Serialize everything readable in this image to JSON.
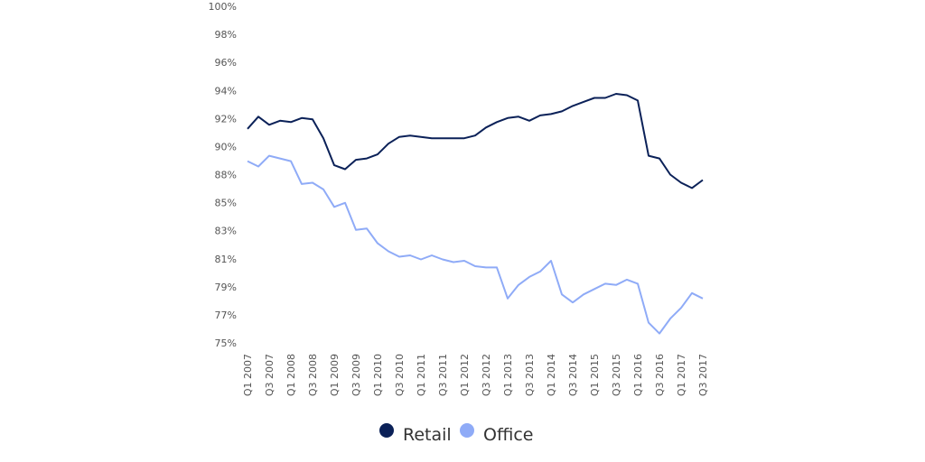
{
  "chart_data": {
    "type": "line",
    "title": "",
    "xlabel": "",
    "ylabel": "",
    "ylim": [
      75,
      100
    ],
    "y_ticks": [
      "75%",
      "77%",
      "79%",
      "81%",
      "83%",
      "85%",
      "88%",
      "90%",
      "92%",
      "94%",
      "96%",
      "98%",
      "100%"
    ],
    "grid": false,
    "legend_placement": "bottom",
    "x": [
      "Q1 2007",
      "Q2 2007",
      "Q3 2007",
      "Q4 2007",
      "Q1 2008",
      "Q2 2008",
      "Q3 2008",
      "Q4 2008",
      "Q1 2009",
      "Q2 2009",
      "Q3 2009",
      "Q4 2009",
      "Q1 2010",
      "Q2 2010",
      "Q3 2010",
      "Q4 2010",
      "Q1 2011",
      "Q2 2011",
      "Q3 2011",
      "Q4 2011",
      "Q1 2012",
      "Q2 2012",
      "Q3 2012",
      "Q4 2012",
      "Q1 2013",
      "Q2 2013",
      "Q3 2013",
      "Q4 2013",
      "Q1 2014",
      "Q2 2014",
      "Q3 2014",
      "Q4 2014",
      "Q1 2015",
      "Q2 2015",
      "Q3 2015",
      "Q4 2015",
      "Q1 2016",
      "Q2 2016",
      "Q3 2016",
      "Q4 2016",
      "Q1 2017",
      "Q2 2017",
      "Q3 2017"
    ],
    "x_tick_labels": [
      "Q1 2007",
      "Q3 2007",
      "Q1 2008",
      "Q3 2008",
      "Q1 2009",
      "Q3 2009",
      "Q1 2010",
      "Q3 2010",
      "Q1 2011",
      "Q3 2011",
      "Q1 2012",
      "Q3 2012",
      "Q1 2013",
      "Q3 2013",
      "Q1 2014",
      "Q3 2014",
      "Q1 2015",
      "Q3 2015",
      "Q1 2016",
      "Q3 2016",
      "Q1 2017",
      "Q3 2017"
    ],
    "series": [
      {
        "name": "Retail",
        "color": "#0b2158",
        "values": [
          90.9,
          91.8,
          91.2,
          91.5,
          91.4,
          91.7,
          91.6,
          90.2,
          88.2,
          87.9,
          88.6,
          88.7,
          89.0,
          89.8,
          90.3,
          90.4,
          90.3,
          90.2,
          90.2,
          90.2,
          90.2,
          90.4,
          91.0,
          91.4,
          91.7,
          91.8,
          91.5,
          91.9,
          92.0,
          92.2,
          92.6,
          92.9,
          93.2,
          93.2,
          93.5,
          93.4,
          93.0,
          88.9,
          88.7,
          87.5,
          86.9,
          86.5,
          87.1
        ]
      },
      {
        "name": "Office",
        "color": "#8fabf7",
        "values": [
          88.5,
          88.1,
          88.9,
          88.7,
          88.5,
          86.8,
          86.9,
          86.4,
          85.1,
          85.4,
          83.4,
          83.5,
          82.4,
          81.8,
          81.4,
          81.5,
          81.2,
          81.5,
          81.2,
          81.0,
          81.1,
          80.7,
          80.6,
          80.6,
          78.3,
          79.3,
          79.9,
          80.3,
          81.1,
          78.6,
          78.0,
          78.6,
          79.0,
          79.4,
          79.3,
          79.7,
          79.4,
          76.5,
          75.7,
          76.8,
          77.6,
          78.7,
          78.3
        ]
      }
    ]
  }
}
